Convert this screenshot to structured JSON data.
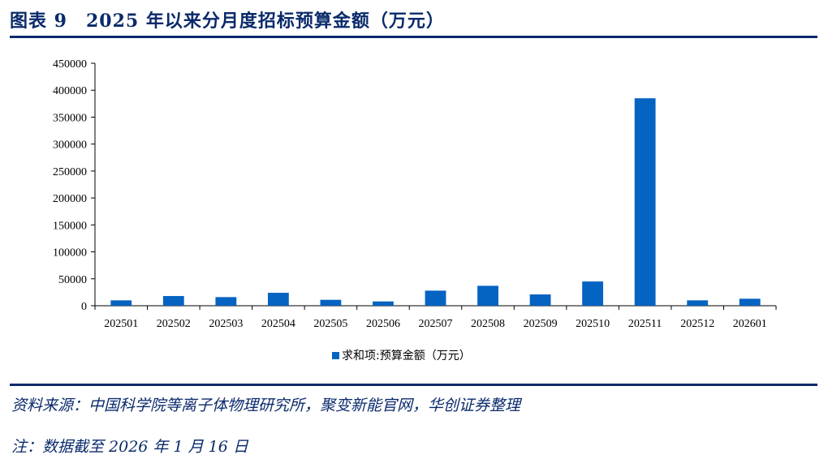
{
  "header": {
    "title": "图表 9　2025 年以来分月度招标预算金额（万元）"
  },
  "footer": {
    "source": "资料来源：中国科学院等离子体物理研究所，聚变新能官网，华创证券整理",
    "note": "注：数据截至 2026 年 1 月 16 日"
  },
  "colors": {
    "bar": "#0563c1",
    "rule": "#0a2a6b"
  },
  "chart_data": {
    "type": "bar",
    "title": "",
    "xlabel": "",
    "ylabel": "",
    "categories": [
      "202501",
      "202502",
      "202503",
      "202504",
      "202505",
      "202506",
      "202507",
      "202508",
      "202509",
      "202510",
      "202511",
      "202512",
      "202601"
    ],
    "series": [
      {
        "name": "求和项:预算金额（万元）",
        "values": [
          10000,
          18000,
          16000,
          24000,
          11000,
          8000,
          28000,
          37000,
          21000,
          45000,
          385000,
          10000,
          13000
        ]
      }
    ],
    "ylim": [
      0,
      450000
    ],
    "yticks": [
      "0",
      "50000",
      "100000",
      "150000",
      "200000",
      "250000",
      "300000",
      "350000",
      "400000",
      "450000"
    ],
    "grid": false,
    "legend_position": "bottom"
  }
}
